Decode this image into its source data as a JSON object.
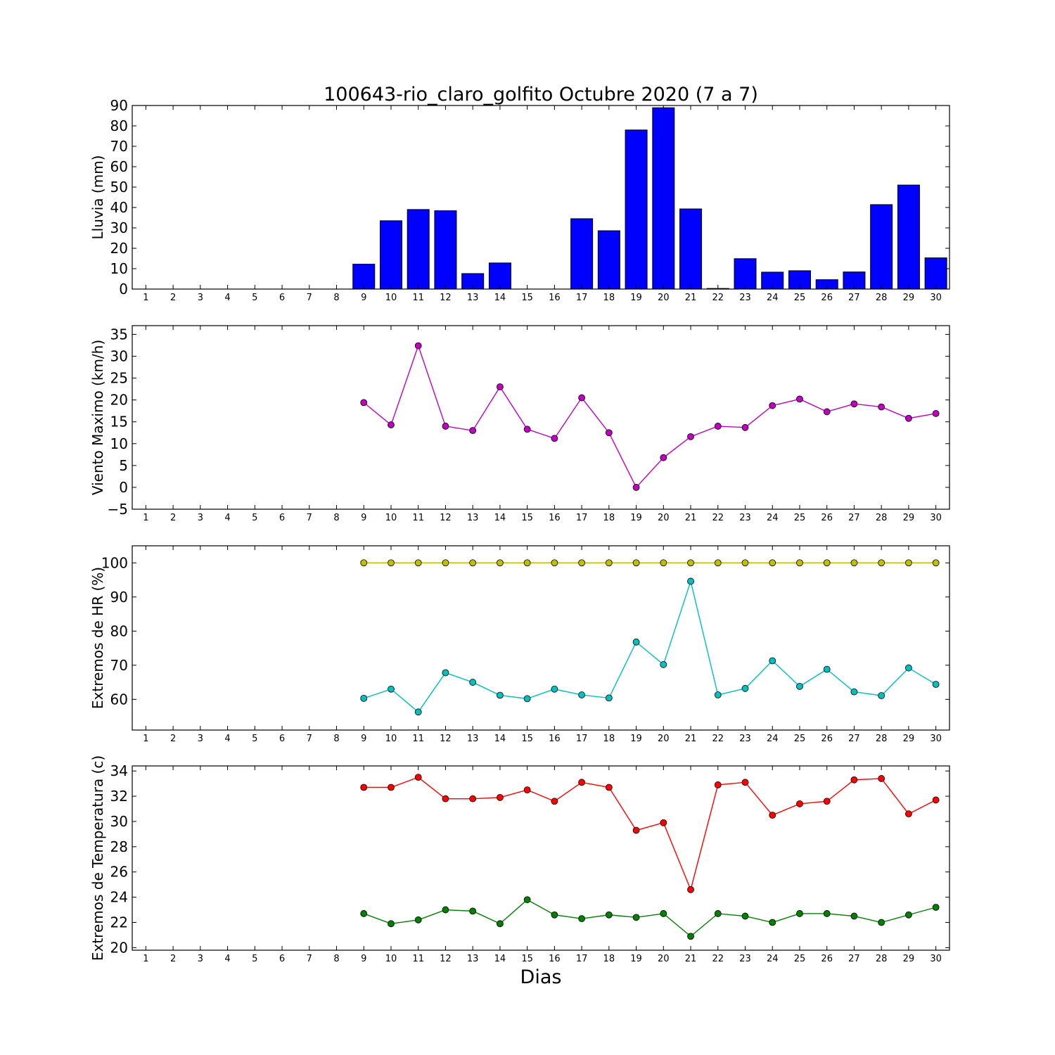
{
  "figure": {
    "title": "100643-rio_claro_golfito Octubre 2020  (7 a 7)",
    "xlabel": "Dias"
  },
  "chart_data": [
    {
      "type": "bar",
      "ylabel": "Lluvia (mm)",
      "ylim": [
        0,
        90
      ],
      "yticks": [
        0,
        10,
        20,
        30,
        40,
        50,
        60,
        70,
        80,
        90
      ],
      "x": [
        1,
        2,
        3,
        4,
        5,
        6,
        7,
        8,
        9,
        10,
        11,
        12,
        13,
        14,
        15,
        16,
        17,
        18,
        19,
        20,
        21,
        22,
        23,
        24,
        25,
        26,
        27,
        28,
        29,
        30
      ],
      "series": [
        {
          "color": "#0000ff",
          "values": [
            0,
            0,
            0,
            0,
            0,
            0,
            0,
            0,
            12.2,
            33.5,
            39,
            38.4,
            7.6,
            12.8,
            0,
            0,
            34.5,
            28.6,
            78,
            88.9,
            39.3,
            0.3,
            14.9,
            8.3,
            9,
            4.6,
            8.4,
            41.4,
            51,
            15.3
          ]
        }
      ]
    },
    {
      "type": "line",
      "ylabel": "Viento Maximo (km/h)",
      "ylim": [
        -5,
        37
      ],
      "yticks": [
        -5,
        0,
        5,
        10,
        15,
        20,
        25,
        30,
        35
      ],
      "x": [
        1,
        2,
        3,
        4,
        5,
        6,
        7,
        8,
        9,
        10,
        11,
        12,
        13,
        14,
        15,
        16,
        17,
        18,
        19,
        20,
        21,
        22,
        23,
        24,
        25,
        26,
        27,
        28,
        29,
        30
      ],
      "series": [
        {
          "color": "#bf00bf",
          "values": [
            null,
            null,
            null,
            null,
            null,
            null,
            null,
            null,
            19.4,
            14.3,
            32.4,
            14.0,
            13.0,
            23.0,
            13.3,
            11.2,
            20.5,
            12.5,
            0.0,
            6.8,
            11.6,
            14.0,
            13.7,
            18.7,
            20.2,
            17.3,
            19.1,
            18.4,
            15.8,
            16.9
          ]
        }
      ]
    },
    {
      "type": "line",
      "ylabel": "Extremos de HR (%)",
      "ylim": [
        51,
        105
      ],
      "yticks": [
        60,
        70,
        80,
        90,
        100
      ],
      "x": [
        1,
        2,
        3,
        4,
        5,
        6,
        7,
        8,
        9,
        10,
        11,
        12,
        13,
        14,
        15,
        16,
        17,
        18,
        19,
        20,
        21,
        22,
        23,
        24,
        25,
        26,
        27,
        28,
        29,
        30
      ],
      "series": [
        {
          "color": "#bfbf00",
          "values": [
            null,
            null,
            null,
            null,
            null,
            null,
            null,
            null,
            100,
            100,
            100,
            100,
            100,
            100,
            100,
            100,
            100,
            100,
            100,
            100,
            100,
            100,
            100,
            100,
            100,
            100,
            100,
            100,
            100,
            100
          ]
        },
        {
          "color": "#00bfbf",
          "values": [
            null,
            null,
            null,
            null,
            null,
            null,
            null,
            null,
            60.3,
            63.0,
            56.3,
            67.8,
            65.0,
            61.2,
            60.2,
            63.0,
            61.3,
            60.4,
            76.8,
            70.2,
            94.6,
            61.3,
            63.2,
            71.3,
            63.8,
            68.8,
            62.2,
            61.1,
            69.2,
            64.4
          ]
        }
      ]
    },
    {
      "type": "line",
      "ylabel": "Extremos de Temperatura (c)",
      "ylim": [
        19.8,
        34.4
      ],
      "yticks": [
        20,
        22,
        24,
        26,
        28,
        30,
        32,
        34
      ],
      "x": [
        1,
        2,
        3,
        4,
        5,
        6,
        7,
        8,
        9,
        10,
        11,
        12,
        13,
        14,
        15,
        16,
        17,
        18,
        19,
        20,
        21,
        22,
        23,
        24,
        25,
        26,
        27,
        28,
        29,
        30
      ],
      "series": [
        {
          "color": "#ff0000",
          "values": [
            null,
            null,
            null,
            null,
            null,
            null,
            null,
            null,
            32.7,
            32.7,
            33.5,
            31.8,
            31.8,
            31.9,
            32.5,
            31.6,
            33.1,
            32.7,
            29.3,
            29.9,
            24.6,
            32.9,
            33.1,
            30.5,
            31.4,
            31.6,
            33.3,
            33.4,
            30.6,
            31.7
          ]
        },
        {
          "color": "#007f00",
          "values": [
            null,
            null,
            null,
            null,
            null,
            null,
            null,
            null,
            22.7,
            21.9,
            22.2,
            23.0,
            22.9,
            21.9,
            23.8,
            22.6,
            22.3,
            22.6,
            22.4,
            22.7,
            20.9,
            22.7,
            22.5,
            22.0,
            22.7,
            22.7,
            22.5,
            22.0,
            22.6,
            23.2
          ]
        }
      ]
    }
  ]
}
